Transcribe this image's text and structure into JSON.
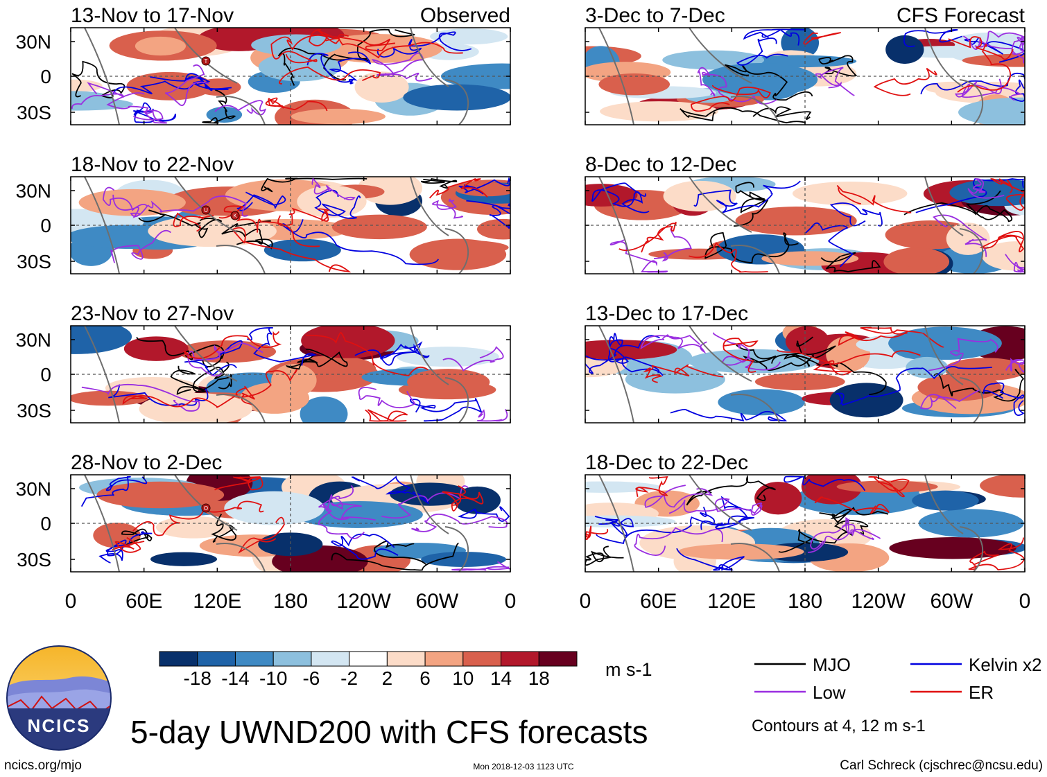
{
  "chart_data": {
    "type": "heatmap",
    "title": "5-day UWND200 with CFS forecasts",
    "variable": "UWND200",
    "units": "m s-1",
    "x_ticks": [
      "0",
      "60E",
      "120E",
      "180",
      "120W",
      "60W",
      "0"
    ],
    "y_ticks": [
      "30N",
      "0",
      "30S"
    ],
    "column_labels": {
      "observed": "Observed",
      "forecast": "CFS Forecast"
    },
    "observed_panels": [
      {
        "period": "13-Nov to 17-Nov",
        "storm_markers": [
          "T"
        ]
      },
      {
        "period": "18-Nov to 22-Nov",
        "storm_markers": [
          "U",
          "K"
        ]
      },
      {
        "period": "23-Nov to 27-Nov",
        "storm_markers": []
      },
      {
        "period": "28-Nov to 2-Dec",
        "storm_markers": [
          "O"
        ]
      }
    ],
    "forecast_panels": [
      {
        "period": "3-Dec to 7-Dec"
      },
      {
        "period": "8-Dec to 12-Dec"
      },
      {
        "period": "13-Dec to 17-Dec"
      },
      {
        "period": "18-Dec to 22-Dec"
      }
    ],
    "colorbar": {
      "labels": [
        "-18",
        "-14",
        "-10",
        "-6",
        "-2",
        "2",
        "6",
        "10",
        "14",
        "18"
      ],
      "colors": [
        "#08306b",
        "#1f63a8",
        "#3f8ac4",
        "#8dc0de",
        "#d3e6f2",
        "#ffffff",
        "#fcdcc8",
        "#f3a482",
        "#d9604d",
        "#b2182b",
        "#67001f"
      ]
    },
    "legend": [
      {
        "name": "MJO",
        "color": "#000000"
      },
      {
        "name": "Kelvin x2",
        "color": "#0000e0"
      },
      {
        "name": "Low",
        "color": "#9a2ee0"
      },
      {
        "name": "ER",
        "color": "#e01010"
      }
    ],
    "contour_note": "Contours at 4, 12 m s-1"
  },
  "branding": {
    "logo_text": "NCICS",
    "url": "ncics.org/mjo"
  },
  "footer": {
    "timestamp": "Mon 2018-12-03 1123 UTC",
    "credit": "Carl Schreck (cjschrec@ncsu.edu)"
  }
}
